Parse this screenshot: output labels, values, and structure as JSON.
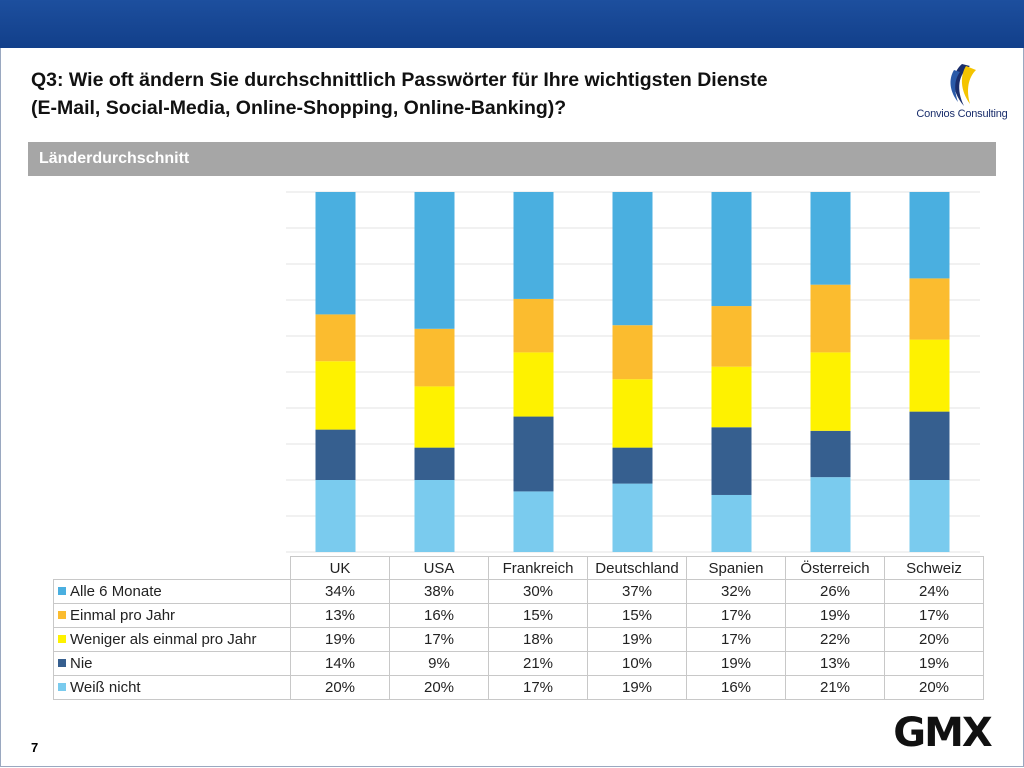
{
  "header": {
    "title_line1": "Q3: Wie oft ändern Sie durchschnittlich Passwörter für Ihre wichtigsten Dienste",
    "title_line2": "(E-Mail, Social-Media, Online-Shopping, Online-Banking)?",
    "logo_text": "Convios Consulting",
    "brand_color": "#123f8a"
  },
  "section": {
    "label": "Länderdurchschnitt"
  },
  "footer": {
    "page_number": "7",
    "logo_text": "GMX"
  },
  "chart_data": {
    "type": "bar",
    "stacked": true,
    "percent_stacked": true,
    "categories": [
      "UK",
      "USA",
      "Frankreich",
      "Deutschland",
      "Spanien",
      "Österreich",
      "Schweiz"
    ],
    "series": [
      {
        "name": "Alle 6 Monate",
        "color": "#4aafe0",
        "values": [
          34,
          38,
          30,
          37,
          32,
          26,
          24
        ],
        "labels": [
          "34%",
          "38%",
          "30%",
          "37%",
          "32%",
          "26%",
          "24%"
        ]
      },
      {
        "name": "Einmal pro Jahr",
        "color": "#fbbc2f",
        "values": [
          13,
          16,
          15,
          15,
          17,
          19,
          17
        ],
        "labels": [
          "13%",
          "16%",
          "15%",
          "15%",
          "17%",
          "19%",
          "17%"
        ]
      },
      {
        "name": "Weniger als einmal pro Jahr",
        "color": "#fef200",
        "values": [
          19,
          17,
          18,
          19,
          17,
          22,
          20
        ],
        "labels": [
          "19%",
          "17%",
          "18%",
          "19%",
          "17%",
          "22%",
          "20%"
        ]
      },
      {
        "name": "Nie",
        "color": "#365f8f",
        "values": [
          14,
          9,
          21,
          10,
          19,
          13,
          19
        ],
        "labels": [
          "14%",
          "9%",
          "21%",
          "10%",
          "19%",
          "13%",
          "19%"
        ]
      },
      {
        "name": "Weiß nicht",
        "color": "#7acbee",
        "values": [
          20,
          20,
          17,
          19,
          16,
          21,
          20
        ],
        "labels": [
          "20%",
          "20%",
          "17%",
          "19%",
          "16%",
          "21%",
          "20%"
        ]
      }
    ],
    "ylim": [
      0,
      100
    ],
    "grid": true,
    "legend": "data-table"
  }
}
